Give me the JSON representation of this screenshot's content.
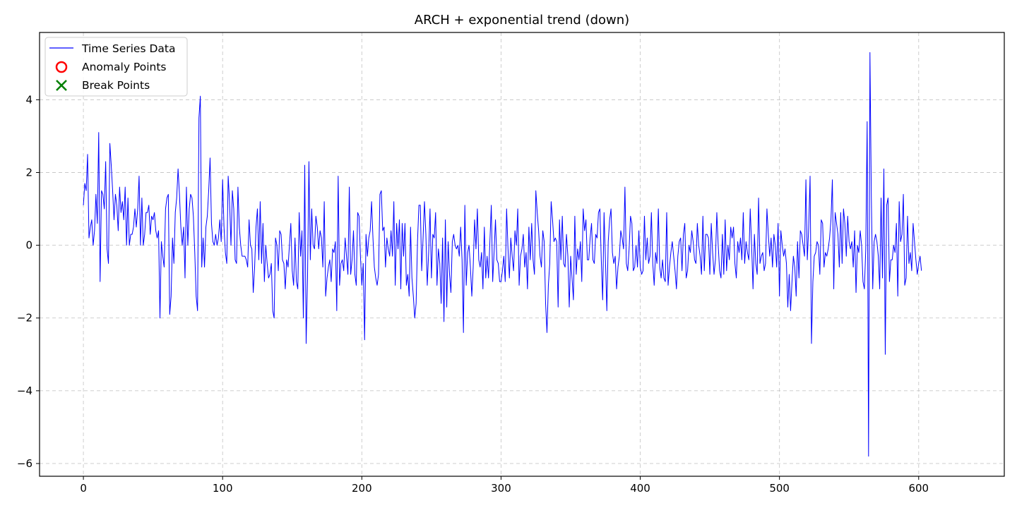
{
  "chart_data": {
    "type": "line",
    "title": "ARCH + exponential trend (down)",
    "xlabel": "",
    "ylabel": "",
    "xlim": [
      -31.5,
      661.5
    ],
    "ylim": [
      -6.35,
      5.85
    ],
    "xticks": [
      0,
      100,
      200,
      300,
      400,
      500,
      600
    ],
    "yticks": [
      -6,
      -4,
      -2,
      0,
      2,
      4
    ],
    "grid": true,
    "legend_position": "top-left",
    "legend": [
      {
        "label": "Time Series Data",
        "marker": "line",
        "color": "#0000ff"
      },
      {
        "label": "Anomaly Points",
        "marker": "circle",
        "color": "#ff0000"
      },
      {
        "label": "Break Points",
        "marker": "x",
        "color": "#008000"
      }
    ],
    "series": [
      {
        "name": "Time Series Data",
        "color": "#0000ff",
        "x_start": 0,
        "x_step": 1,
        "values": [
          1.1,
          1.7,
          1.5,
          2.5,
          0.2,
          0.5,
          0.7,
          0.0,
          0.4,
          1.4,
          0.6,
          3.1,
          -1.0,
          1.5,
          1.4,
          1.0,
          2.3,
          -0.1,
          -0.5,
          2.8,
          2.2,
          1.5,
          0.7,
          1.4,
          1.1,
          0.4,
          1.6,
          0.9,
          1.2,
          0.7,
          1.6,
          0.0,
          1.3,
          0.0,
          0.3,
          0.3,
          0.5,
          1.0,
          0.5,
          1.0,
          1.9,
          0.0,
          1.3,
          0.0,
          0.3,
          0.9,
          0.9,
          1.1,
          0.3,
          0.8,
          0.7,
          0.9,
          0.4,
          0.2,
          0.4,
          -2.0,
          0.1,
          -0.3,
          -0.6,
          1.0,
          1.3,
          1.4,
          -1.9,
          -1.4,
          0.2,
          -0.5,
          0.9,
          1.3,
          2.1,
          1.4,
          0.5,
          0.0,
          0.5,
          -0.9,
          1.6,
          0.0,
          1.0,
          1.4,
          1.3,
          0.8,
          -0.2,
          -1.4,
          -1.8,
          3.5,
          4.1,
          -0.6,
          0.2,
          -0.6,
          0.5,
          0.8,
          1.5,
          2.4,
          0.6,
          0.1,
          0.0,
          0.3,
          0.0,
          0.2,
          0.7,
          0.1,
          1.8,
          0.5,
          -0.2,
          -0.5,
          1.9,
          1.2,
          0.0,
          1.5,
          1.0,
          -0.4,
          -0.5,
          1.6,
          0.5,
          0.0,
          -0.3,
          -0.3,
          -0.3,
          -0.4,
          -0.6,
          0.7,
          0.0,
          -0.1,
          -1.3,
          -0.6,
          0.5,
          1.0,
          -0.4,
          1.2,
          -0.5,
          0.6,
          -1.0,
          0.0,
          -0.5,
          -0.9,
          -0.8,
          -0.5,
          -1.8,
          -2.0,
          0.2,
          0.0,
          -0.7,
          0.4,
          0.3,
          -0.4,
          -0.5,
          -1.2,
          -0.4,
          -0.6,
          0.0,
          0.6,
          -0.7,
          -1.1,
          0.2,
          -1.0,
          -1.2,
          0.9,
          -0.3,
          0.4,
          -2.0,
          2.2,
          -2.7,
          -0.9,
          2.3,
          -0.4,
          1.0,
          0.0,
          -0.1,
          0.8,
          0.5,
          -0.1,
          0.4,
          0.2,
          -0.6,
          1.2,
          -1.4,
          -0.9,
          -0.6,
          -0.4,
          -1.0,
          -0.1,
          -0.2,
          0.1,
          -1.8,
          1.9,
          -1.1,
          -0.5,
          -0.4,
          -0.7,
          0.2,
          -0.3,
          -0.8,
          1.6,
          -0.8,
          -0.4,
          0.4,
          -0.8,
          -1.1,
          0.9,
          0.8,
          -0.3,
          -1.1,
          -0.5,
          -2.6,
          0.3,
          -0.3,
          0.2,
          0.4,
          1.2,
          0.2,
          -0.6,
          -0.9,
          -1.1,
          -0.8,
          1.4,
          1.5,
          0.4,
          0.5,
          -0.6,
          0.2,
          -0.1,
          -0.3,
          0.4,
          -0.3,
          1.2,
          -1.1,
          0.6,
          -0.1,
          0.7,
          -1.2,
          0.6,
          -0.3,
          0.6,
          -1.1,
          -0.8,
          -1.4,
          0.5,
          -0.9,
          -1.4,
          -2.0,
          -1.6,
          0.1,
          1.1,
          1.1,
          -0.7,
          0.2,
          1.2,
          0.3,
          -1.1,
          -0.2,
          1.0,
          -0.9,
          0.3,
          0.2,
          0.9,
          -1.1,
          -0.1,
          -0.5,
          -1.6,
          0.2,
          -2.1,
          0.7,
          -1.7,
          0.1,
          -0.8,
          -1.3,
          0.1,
          0.3,
          0.0,
          -0.1,
          0.0,
          -0.3,
          0.5,
          -0.4,
          -2.4,
          1.1,
          -1.1,
          -0.2,
          0.0,
          -0.6,
          -1.4,
          -0.6,
          0.7,
          -0.1,
          1.0,
          -0.4,
          -0.6,
          -0.2,
          -1.2,
          0.5,
          -0.9,
          -0.3,
          -0.9,
          0.1,
          1.1,
          -1.0,
          -0.2,
          0.7,
          -0.4,
          -0.5,
          -1.0,
          -1.0,
          -0.7,
          -0.3,
          -1.0,
          1.0,
          -0.1,
          -0.9,
          0.2,
          -0.3,
          -0.7,
          0.4,
          0.0,
          1.0,
          -1.1,
          -0.3,
          -0.1,
          0.3,
          -0.6,
          -0.2,
          -1.2,
          0.5,
          -0.4,
          0.6,
          -0.4,
          -0.8,
          1.5,
          0.9,
          0.4,
          -0.3,
          -0.6,
          0.4,
          0.1,
          -1.6,
          -2.4,
          -1.1,
          -0.5,
          1.2,
          0.7,
          0.1,
          0.2,
          0.1,
          -1.7,
          0.7,
          -0.4,
          0.8,
          -0.5,
          -0.6,
          0.3,
          -0.3,
          -1.7,
          -0.3,
          -0.9,
          -1.5,
          0.8,
          -0.8,
          -0.1,
          -0.4,
          0.1,
          -1.0,
          1.0,
          0.4,
          0.7,
          -0.4,
          -0.4,
          0.2,
          0.6,
          -0.4,
          -0.5,
          0.3,
          0.2,
          0.9,
          1.0,
          -0.4,
          -1.5,
          0.9,
          -0.4,
          -1.8,
          0.1,
          0.7,
          1.0,
          -0.2,
          -0.5,
          -0.3,
          -1.2,
          -0.6,
          -0.3,
          0.4,
          0.2,
          -0.1,
          1.6,
          -0.5,
          -0.7,
          -0.1,
          0.8,
          0.6,
          -0.7,
          -0.6,
          0.0,
          -0.6,
          0.4,
          -0.6,
          -0.8,
          -0.7,
          0.8,
          -0.4,
          0.2,
          -0.5,
          -0.3,
          0.9,
          -0.5,
          -1.1,
          -0.2,
          -0.5,
          1.0,
          -0.6,
          -0.9,
          -0.4,
          -0.9,
          -1.0,
          0.9,
          -1.1,
          -0.6,
          -0.2,
          0.1,
          -0.3,
          -0.7,
          -1.2,
          -0.3,
          0.1,
          0.2,
          -0.7,
          0.3,
          0.6,
          -0.9,
          -0.7,
          0.0,
          -0.2,
          0.4,
          0.1,
          -0.4,
          -0.5,
          0.6,
          0.0,
          -0.3,
          -0.8,
          0.8,
          -0.7,
          0.3,
          0.3,
          0.2,
          -0.8,
          0.6,
          -0.2,
          -0.8,
          -0.4,
          0.9,
          0.0,
          -0.7,
          -0.9,
          0.3,
          -0.8,
          0.7,
          -0.7,
          0.0,
          -0.4,
          0.5,
          0.2,
          0.5,
          -0.5,
          -0.9,
          0.1,
          -0.2,
          0.2,
          -0.4,
          0.9,
          -0.5,
          0.1,
          -0.2,
          -0.4,
          1.0,
          0.0,
          -1.2,
          0.3,
          -0.5,
          -0.8,
          1.3,
          -0.5,
          -0.3,
          -0.2,
          -0.7,
          -0.5,
          1.0,
          0.3,
          -0.3,
          0.2,
          -0.6,
          0.3,
          0.0,
          -0.6,
          0.6,
          -1.4,
          0.4,
          0.0,
          -0.3,
          -0.1,
          -0.5,
          -1.7,
          -0.8,
          -1.8,
          -1.0,
          -0.3,
          -0.6,
          -1.4,
          0.1,
          -0.9,
          0.4,
          0.3,
          0.0,
          -0.3,
          1.8,
          -0.4,
          0.5,
          1.9,
          -2.7,
          -1.0,
          -0.3,
          -0.2,
          0.1,
          0.0,
          -0.8,
          0.7,
          0.6,
          -0.6,
          -0.2,
          -0.3,
          -0.1,
          0.2,
          0.7,
          1.8,
          -1.2,
          0.9,
          0.6,
          0.3,
          -0.6,
          0.9,
          -0.5,
          1.0,
          0.6,
          -0.3,
          0.8,
          0.1,
          -0.1,
          0.1,
          -0.6,
          0.4,
          -1.3,
          0.0,
          -0.2,
          0.4,
          0.0,
          -1.0,
          -1.2,
          -0.1,
          3.4,
          -5.8,
          5.3,
          1.3,
          -1.2,
          0.1,
          0.3,
          0.1,
          -0.3,
          -1.2,
          1.3,
          -0.9,
          2.1,
          -3.0,
          1.1,
          1.3,
          -1.0,
          -0.4,
          -0.4,
          0.0,
          -0.2,
          0.6,
          -1.4,
          1.2,
          0.1,
          0.3,
          1.4,
          -1.1,
          -0.9,
          0.8,
          -0.5,
          -0.2,
          -0.7,
          0.6,
          0.1,
          -0.4,
          -0.8,
          -0.5,
          -0.3,
          -0.7
        ]
      }
    ]
  }
}
